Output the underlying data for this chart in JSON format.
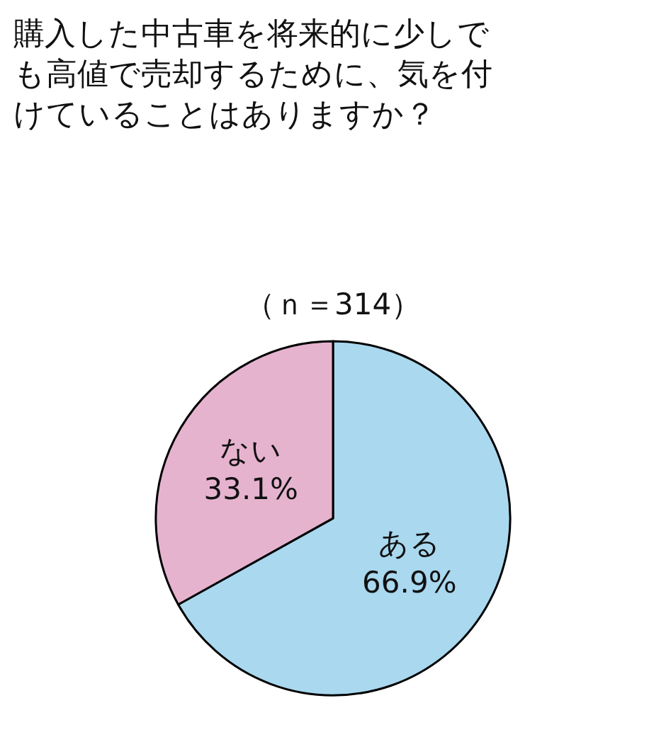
{
  "chart_data": {
    "type": "pie",
    "title": "購入した中古車を将来的に少しでも高値で売却するために、気を付けていることはありますか？",
    "subtitle": "（ｎ＝314）",
    "categories": [
      "ある",
      "ない"
    ],
    "values": [
      66.9,
      33.1
    ],
    "value_labels": [
      "66.9%",
      "33.1%"
    ],
    "colors": [
      "#a9d8ef",
      "#e6b3cf"
    ],
    "legend": false
  }
}
